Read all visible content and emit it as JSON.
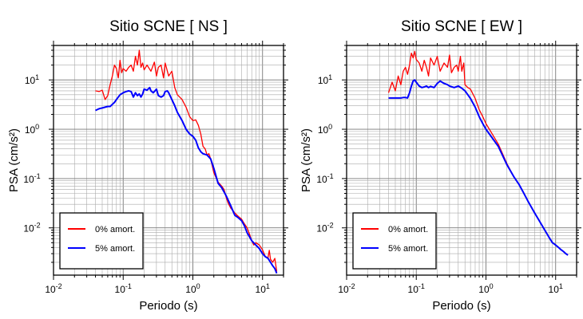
{
  "chart_data": [
    {
      "type": "line",
      "title": "Sitio SCNE [ NS ]",
      "xlabel": "Periodo (s)",
      "ylabel": "PSA (cm/s²)",
      "xscale": "log",
      "yscale": "log",
      "xlim": [
        0.01,
        20
      ],
      "ylim": [
        0.0011,
        50
      ],
      "grid": true,
      "legend_position": "bottom-left",
      "x_ticks": [
        {
          "v": 0.01,
          "base": "10",
          "exp": "-2"
        },
        {
          "v": 0.1,
          "base": "10",
          "exp": "-1"
        },
        {
          "v": 1,
          "base": "10",
          "exp": "0"
        },
        {
          "v": 10,
          "base": "10",
          "exp": "1"
        }
      ],
      "y_ticks": [
        {
          "v": 0.01,
          "base": "10",
          "exp": "-2"
        },
        {
          "v": 0.1,
          "base": "10",
          "exp": "-1"
        },
        {
          "v": 1,
          "base": "10",
          "exp": "0"
        },
        {
          "v": 10,
          "base": "10",
          "exp": "1"
        }
      ],
      "series": [
        {
          "name": "0% amort.",
          "color": "#ff0000",
          "points": [
            [
              0.04,
              6.0
            ],
            [
              0.045,
              5.8
            ],
            [
              0.05,
              6.2
            ],
            [
              0.055,
              4.0
            ],
            [
              0.06,
              4.8
            ],
            [
              0.065,
              8.0
            ],
            [
              0.07,
              12.0
            ],
            [
              0.075,
              20.0
            ],
            [
              0.08,
              17.0
            ],
            [
              0.085,
              11.0
            ],
            [
              0.09,
              25.0
            ],
            [
              0.095,
              14.0
            ],
            [
              0.1,
              17.0
            ],
            [
              0.11,
              15.0
            ],
            [
              0.12,
              18.0
            ],
            [
              0.13,
              20.0
            ],
            [
              0.14,
              15.0
            ],
            [
              0.15,
              30.0
            ],
            [
              0.16,
              20.0
            ],
            [
              0.17,
              40.0
            ],
            [
              0.18,
              18.0
            ],
            [
              0.19,
              22.0
            ],
            [
              0.2,
              16.0
            ],
            [
              0.22,
              20.0
            ],
            [
              0.25,
              15.0
            ],
            [
              0.28,
              23.0
            ],
            [
              0.3,
              12.0
            ],
            [
              0.32,
              18.0
            ],
            [
              0.35,
              20.0
            ],
            [
              0.38,
              11.0
            ],
            [
              0.4,
              22.0
            ],
            [
              0.45,
              12.0
            ],
            [
              0.5,
              15.0
            ],
            [
              0.55,
              7.0
            ],
            [
              0.6,
              5.0
            ],
            [
              0.7,
              4.0
            ],
            [
              0.8,
              2.8
            ],
            [
              0.9,
              1.8
            ],
            [
              1.0,
              1.5
            ],
            [
              1.1,
              1.55
            ],
            [
              1.2,
              1.2
            ],
            [
              1.3,
              0.8
            ],
            [
              1.4,
              0.45
            ],
            [
              1.5,
              0.4
            ],
            [
              1.6,
              0.3
            ],
            [
              1.7,
              0.32
            ],
            [
              1.8,
              0.25
            ],
            [
              2.0,
              0.13
            ],
            [
              2.3,
              0.085
            ],
            [
              2.6,
              0.07
            ],
            [
              2.8,
              0.06
            ],
            [
              3.0,
              0.042
            ],
            [
              3.2,
              0.032
            ],
            [
              3.5,
              0.025
            ],
            [
              4.0,
              0.02
            ],
            [
              4.5,
              0.017
            ],
            [
              5.0,
              0.015
            ],
            [
              5.5,
              0.012
            ],
            [
              6.0,
              0.01
            ],
            [
              6.5,
              0.0075
            ],
            [
              7.0,
              0.0055
            ],
            [
              7.5,
              0.0045
            ],
            [
              8.0,
              0.005
            ],
            [
              9.0,
              0.0045
            ],
            [
              10.0,
              0.0036
            ],
            [
              11.0,
              0.0026
            ],
            [
              12.0,
              0.0025
            ],
            [
              12.5,
              0.0035
            ],
            [
              13.0,
              0.0023
            ],
            [
              14.0,
              0.002
            ],
            [
              15.0,
              0.0024
            ],
            [
              16.0,
              0.0013
            ]
          ]
        },
        {
          "name": "5% amort.",
          "color": "#0000ff",
          "points": [
            [
              0.04,
              2.4
            ],
            [
              0.045,
              2.6
            ],
            [
              0.05,
              2.7
            ],
            [
              0.055,
              2.8
            ],
            [
              0.06,
              2.9
            ],
            [
              0.065,
              2.9
            ],
            [
              0.07,
              3.2
            ],
            [
              0.075,
              3.5
            ],
            [
              0.08,
              4.0
            ],
            [
              0.085,
              4.5
            ],
            [
              0.09,
              5.0
            ],
            [
              0.1,
              5.5
            ],
            [
              0.11,
              5.8
            ],
            [
              0.12,
              6.0
            ],
            [
              0.13,
              5.8
            ],
            [
              0.14,
              4.5
            ],
            [
              0.15,
              5.5
            ],
            [
              0.16,
              4.8
            ],
            [
              0.17,
              5.2
            ],
            [
              0.18,
              4.5
            ],
            [
              0.19,
              5.2
            ],
            [
              0.2,
              6.5
            ],
            [
              0.22,
              6.2
            ],
            [
              0.24,
              7.0
            ],
            [
              0.25,
              6.0
            ],
            [
              0.27,
              5.5
            ],
            [
              0.3,
              6.5
            ],
            [
              0.32,
              4.8
            ],
            [
              0.35,
              4.5
            ],
            [
              0.38,
              4.8
            ],
            [
              0.4,
              5.8
            ],
            [
              0.43,
              6.0
            ],
            [
              0.45,
              5.5
            ],
            [
              0.5,
              4.0
            ],
            [
              0.55,
              3.0
            ],
            [
              0.6,
              2.2
            ],
            [
              0.7,
              1.5
            ],
            [
              0.8,
              1.0
            ],
            [
              0.9,
              0.8
            ],
            [
              1.0,
              0.72
            ],
            [
              1.1,
              0.6
            ],
            [
              1.2,
              0.42
            ],
            [
              1.3,
              0.35
            ],
            [
              1.4,
              0.32
            ],
            [
              1.6,
              0.3
            ],
            [
              1.8,
              0.25
            ],
            [
              2.0,
              0.16
            ],
            [
              2.3,
              0.08
            ],
            [
              2.6,
              0.065
            ],
            [
              3.0,
              0.045
            ],
            [
              3.5,
              0.028
            ],
            [
              4.0,
              0.018
            ],
            [
              4.5,
              0.016
            ],
            [
              5.0,
              0.014
            ],
            [
              5.5,
              0.011
            ],
            [
              6.0,
              0.008
            ],
            [
              7.0,
              0.0055
            ],
            [
              8.0,
              0.0045
            ],
            [
              9.0,
              0.0038
            ],
            [
              10.0,
              0.003
            ],
            [
              11.0,
              0.0026
            ],
            [
              12.0,
              0.0024
            ],
            [
              13.0,
              0.002
            ],
            [
              14.0,
              0.0017
            ],
            [
              15.0,
              0.0015
            ],
            [
              16.0,
              0.0012
            ]
          ]
        }
      ]
    },
    {
      "type": "line",
      "title": "Sitio SCNE [ EW ]",
      "xlabel": "Periodo (s)",
      "ylabel": "PSA (cm/s²)",
      "xscale": "log",
      "yscale": "log",
      "xlim": [
        0.01,
        20
      ],
      "ylim": [
        0.0011,
        50
      ],
      "grid": true,
      "legend_position": "bottom-left",
      "x_ticks": [
        {
          "v": 0.01,
          "base": "10",
          "exp": "-2"
        },
        {
          "v": 0.1,
          "base": "10",
          "exp": "-1"
        },
        {
          "v": 1,
          "base": "10",
          "exp": "0"
        },
        {
          "v": 10,
          "base": "10",
          "exp": "1"
        }
      ],
      "y_ticks": [
        {
          "v": 0.01,
          "base": "10",
          "exp": "-2"
        },
        {
          "v": 0.1,
          "base": "10",
          "exp": "-1"
        },
        {
          "v": 1,
          "base": "10",
          "exp": "0"
        },
        {
          "v": 10,
          "base": "10",
          "exp": "1"
        }
      ],
      "series": [
        {
          "name": "0% amort.",
          "color": "#ff0000",
          "points": [
            [
              0.04,
              5.5
            ],
            [
              0.045,
              9.0
            ],
            [
              0.05,
              6.0
            ],
            [
              0.055,
              12.0
            ],
            [
              0.06,
              8.0
            ],
            [
              0.065,
              15.0
            ],
            [
              0.07,
              18.0
            ],
            [
              0.075,
              13.0
            ],
            [
              0.08,
              20.0
            ],
            [
              0.085,
              35.0
            ],
            [
              0.09,
              28.0
            ],
            [
              0.095,
              38.0
            ],
            [
              0.1,
              26.0
            ],
            [
              0.11,
              22.0
            ],
            [
              0.12,
              15.0
            ],
            [
              0.13,
              25.0
            ],
            [
              0.14,
              18.0
            ],
            [
              0.15,
              12.0
            ],
            [
              0.16,
              28.0
            ],
            [
              0.18,
              20.0
            ],
            [
              0.2,
              30.0
            ],
            [
              0.22,
              15.0
            ],
            [
              0.25,
              22.0
            ],
            [
              0.28,
              18.0
            ],
            [
              0.3,
              32.0
            ],
            [
              0.32,
              14.0
            ],
            [
              0.35,
              18.0
            ],
            [
              0.38,
              20.0
            ],
            [
              0.4,
              15.0
            ],
            [
              0.43,
              30.0
            ],
            [
              0.45,
              15.0
            ],
            [
              0.48,
              22.0
            ],
            [
              0.5,
              8.0
            ],
            [
              0.55,
              7.0
            ],
            [
              0.6,
              6.5
            ],
            [
              0.7,
              4.2
            ],
            [
              0.8,
              2.5
            ],
            [
              0.9,
              1.8
            ],
            [
              1.0,
              1.3
            ],
            [
              1.2,
              0.85
            ],
            [
              1.5,
              0.5
            ],
            [
              2.0,
              0.2
            ],
            [
              2.5,
              0.11
            ],
            [
              3.0,
              0.075
            ],
            [
              3.5,
              0.05
            ],
            [
              4.0,
              0.035
            ],
            [
              5.0,
              0.02
            ],
            [
              6.0,
              0.013
            ],
            [
              7.0,
              0.009
            ],
            [
              8.0,
              0.0065
            ],
            [
              9.0,
              0.005
            ],
            [
              10.0,
              0.0045
            ],
            [
              11.0,
              0.004
            ],
            [
              12.0,
              0.0036
            ],
            [
              13.0,
              0.0033
            ],
            [
              14.0,
              0.003
            ],
            [
              15.0,
              0.0028
            ]
          ]
        },
        {
          "name": "5% amort.",
          "color": "#0000ff",
          "points": [
            [
              0.04,
              4.3
            ],
            [
              0.045,
              4.3
            ],
            [
              0.05,
              4.3
            ],
            [
              0.055,
              4.3
            ],
            [
              0.06,
              4.3
            ],
            [
              0.065,
              4.4
            ],
            [
              0.07,
              4.4
            ],
            [
              0.075,
              4.3
            ],
            [
              0.08,
              5.5
            ],
            [
              0.085,
              7.5
            ],
            [
              0.09,
              9.5
            ],
            [
              0.095,
              10.0
            ],
            [
              0.1,
              9.0
            ],
            [
              0.11,
              7.5
            ],
            [
              0.12,
              7.0
            ],
            [
              0.13,
              7.2
            ],
            [
              0.14,
              7.5
            ],
            [
              0.15,
              7.0
            ],
            [
              0.16,
              7.4
            ],
            [
              0.18,
              7.0
            ],
            [
              0.2,
              8.5
            ],
            [
              0.22,
              9.5
            ],
            [
              0.25,
              8.5
            ],
            [
              0.28,
              8.0
            ],
            [
              0.3,
              7.5
            ],
            [
              0.35,
              7.0
            ],
            [
              0.4,
              7.5
            ],
            [
              0.45,
              6.8
            ],
            [
              0.5,
              6.0
            ],
            [
              0.55,
              5.0
            ],
            [
              0.6,
              4.2
            ],
            [
              0.7,
              2.8
            ],
            [
              0.8,
              1.8
            ],
            [
              0.9,
              1.3
            ],
            [
              1.0,
              1.0
            ],
            [
              1.2,
              0.7
            ],
            [
              1.5,
              0.45
            ],
            [
              2.0,
              0.19
            ],
            [
              2.5,
              0.11
            ],
            [
              3.0,
              0.075
            ],
            [
              3.5,
              0.05
            ],
            [
              4.0,
              0.035
            ],
            [
              5.0,
              0.02
            ],
            [
              6.0,
              0.013
            ],
            [
              7.0,
              0.009
            ],
            [
              8.0,
              0.0065
            ],
            [
              9.0,
              0.005
            ],
            [
              10.0,
              0.0045
            ],
            [
              11.0,
              0.004
            ],
            [
              12.0,
              0.0036
            ],
            [
              13.0,
              0.0033
            ],
            [
              14.0,
              0.003
            ],
            [
              15.0,
              0.0028
            ]
          ]
        }
      ]
    }
  ]
}
